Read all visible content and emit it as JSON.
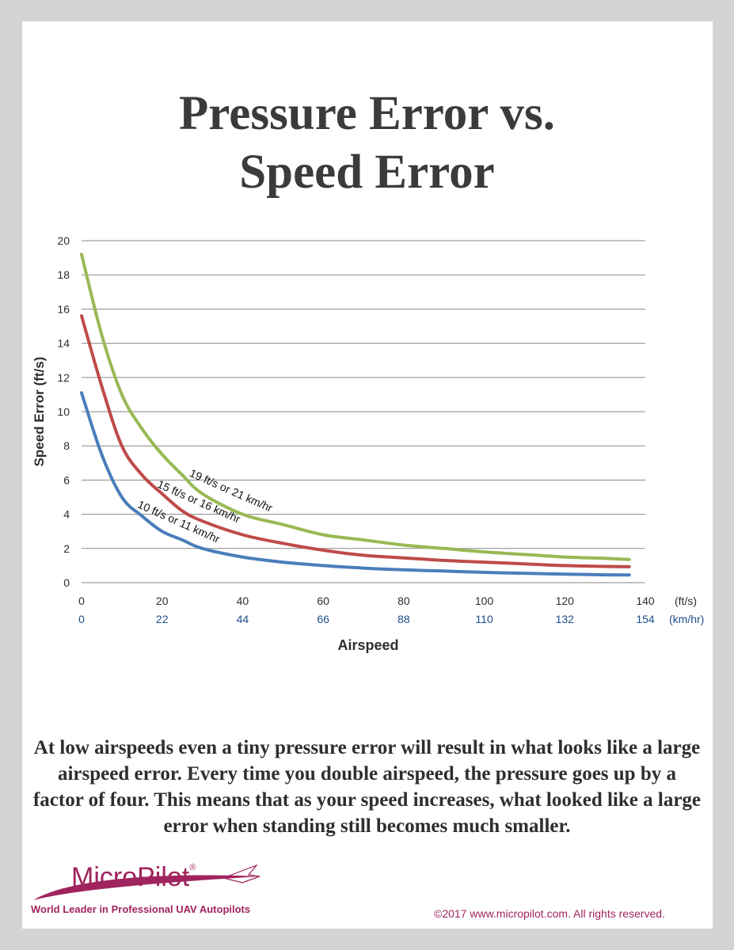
{
  "header": {
    "title_line1": "Pressure Error vs.",
    "title_line2": "Speed Error"
  },
  "chart_data": {
    "type": "line",
    "ylabel": "Speed Error (ft/s)",
    "xlabel": "Airspeed",
    "ylim": [
      0,
      20
    ],
    "xlim": [
      0,
      140
    ],
    "y_ticks": [
      "0",
      "2",
      "4",
      "6",
      "8",
      "10",
      "12",
      "14",
      "16",
      "18",
      "20"
    ],
    "x_ticks_fts": [
      "0",
      "20",
      "40",
      "60",
      "80",
      "100",
      "120",
      "140"
    ],
    "x_ticks_kmh": [
      "0",
      "22",
      "44",
      "66",
      "88",
      "110",
      "132",
      "154"
    ],
    "x_unit_fts": "(ft/s)",
    "x_unit_kmh": "(km/hr)",
    "grid": true,
    "series": [
      {
        "label": "10 ft/s or 11 km/hr",
        "color": "#4a7ebb",
        "x": [
          0,
          5,
          10,
          15,
          20,
          25,
          30,
          40,
          50,
          60,
          70,
          80,
          90,
          100,
          110,
          120,
          130,
          136
        ],
        "y": [
          11.1,
          7.5,
          5.0,
          3.9,
          3.0,
          2.5,
          2.0,
          1.5,
          1.2,
          1.0,
          0.85,
          0.75,
          0.68,
          0.6,
          0.55,
          0.5,
          0.46,
          0.45
        ]
      },
      {
        "label": "15 ft/s or 16 km/hr",
        "color": "#be4b48",
        "x": [
          0,
          5,
          10,
          15,
          20,
          25,
          30,
          40,
          50,
          60,
          70,
          80,
          90,
          100,
          110,
          120,
          130,
          136
        ],
        "y": [
          15.6,
          11.5,
          8.0,
          6.3,
          5.2,
          4.2,
          3.6,
          2.8,
          2.3,
          1.9,
          1.6,
          1.45,
          1.3,
          1.2,
          1.1,
          1.0,
          0.95,
          0.93
        ]
      },
      {
        "label": "19 ft/s or 21 km/hr",
        "color": "#98b954",
        "x": [
          0,
          5,
          10,
          15,
          20,
          25,
          30,
          40,
          50,
          60,
          70,
          80,
          90,
          100,
          110,
          120,
          130,
          136
        ],
        "y": [
          19.2,
          14.5,
          11.0,
          9.0,
          7.5,
          6.3,
          5.2,
          4.0,
          3.4,
          2.8,
          2.5,
          2.2,
          2.0,
          1.8,
          1.65,
          1.5,
          1.42,
          1.35
        ]
      }
    ]
  },
  "body_text": "At low airspeeds even a tiny pressure error will result in what looks like a large airspeed error. Every time you double airspeed, the pressure goes up by a factor of four. This means that as your speed increases, what looked like a large error when standing still becomes much smaller.",
  "footer": {
    "logo_name": "MicroPilot",
    "logo_mark": "®",
    "tagline": "World Leader in Professional UAV Autopilots",
    "copyright": "©2017 www.micropilot.com. All rights reserved."
  },
  "colors": {
    "brand": "#a0245e",
    "title": "#3b3b3b",
    "kmh_axis": "#1f4e8c",
    "grid": "#8a8a8a"
  },
  "icons": {
    "logo_swoosh": "swoosh-icon",
    "logo_plane": "plane-icon"
  }
}
